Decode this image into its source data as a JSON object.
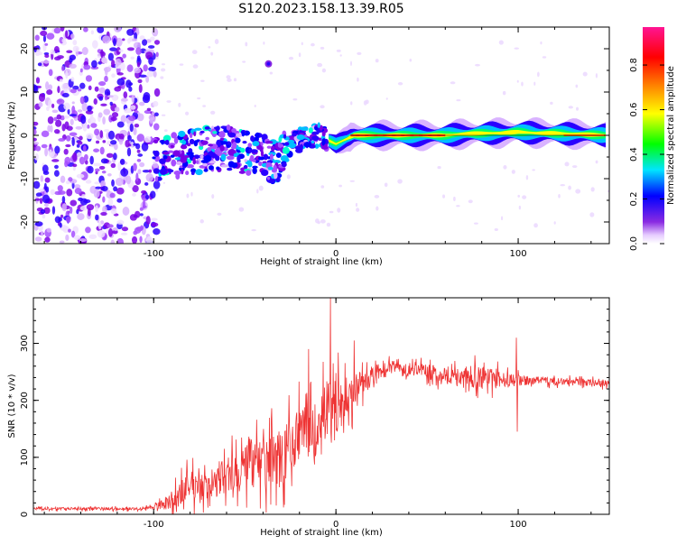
{
  "title": "S120.2023.158.13.39.R05",
  "chart_data": [
    {
      "type": "heatmap",
      "description_id": "spectrogram",
      "xlabel": "Height of straight line (km)",
      "ylabel": "Frequency (Hz)",
      "xlim": [
        -166,
        150
      ],
      "ylim": [
        -25,
        25
      ],
      "xticks": [
        -100,
        0,
        100
      ],
      "xtick_labels": [
        "-100",
        "0",
        "100"
      ],
      "yticks": [
        -20,
        -10,
        0,
        10,
        20
      ],
      "ytick_labels": [
        "-20",
        "-10",
        "0",
        "10",
        "20"
      ],
      "colorbar": {
        "label": "Normalized spectral amplitude",
        "range": [
          0,
          0.97
        ],
        "ticks": [
          0.0,
          0.2,
          0.4,
          0.6,
          0.8
        ],
        "tick_labels": [
          "0.0",
          "0.2",
          "0.4",
          "0.6",
          "0.8"
        ],
        "colors": [
          "#ffffff",
          "#8a2be2",
          "#0000ff",
          "#00e5ff",
          "#00ff00",
          "#ffff00",
          "#ff8c00",
          "#ff0000",
          "#ff1493"
        ]
      },
      "signal_track": {
        "x": [
          -100,
          -90,
          -80,
          -70,
          -60,
          -50,
          -40,
          -35,
          -30,
          -25,
          -20,
          -10,
          -5,
          0,
          5,
          10,
          50,
          60,
          70,
          80,
          90,
          100,
          110,
          120,
          130,
          150
        ],
        "freq": [
          -6,
          -5,
          -4,
          -3,
          -3,
          -4,
          -5,
          -6,
          -5,
          -2,
          -1,
          0,
          -1,
          -2,
          -1,
          0,
          0,
          0,
          0.3,
          0.5,
          0.5,
          0.8,
          0.5,
          0.5,
          0.3,
          0
        ]
      }
    },
    {
      "type": "line",
      "description_id": "snr",
      "xlabel": "Height of straight line (km)",
      "ylabel": "SNR (10 * v/v)",
      "xlim": [
        -166,
        150
      ],
      "ylim": [
        0,
        380
      ],
      "xticks": [
        -100,
        0,
        100
      ],
      "xtick_labels": [
        "-100",
        "0",
        "100"
      ],
      "yticks": [
        0,
        100,
        200,
        300
      ],
      "ytick_labels": [
        "0",
        "100",
        "200",
        "300"
      ],
      "color": "#ee3333",
      "envelope": {
        "x": [
          -166,
          -110,
          -100,
          -90,
          -80,
          -70,
          -60,
          -50,
          -40,
          -30,
          -20,
          -10,
          -5,
          0,
          10,
          20,
          30,
          40,
          60,
          80,
          90,
          100,
          110,
          130,
          150
        ],
        "mean": [
          10,
          10,
          12,
          25,
          50,
          50,
          70,
          80,
          90,
          100,
          140,
          150,
          175,
          190,
          215,
          245,
          260,
          255,
          245,
          240,
          235,
          235,
          235,
          232,
          230
        ],
        "spread": [
          3,
          3,
          5,
          20,
          35,
          30,
          45,
          50,
          55,
          60,
          60,
          60,
          70,
          60,
          40,
          20,
          12,
          12,
          20,
          25,
          20,
          12,
          8,
          8,
          8
        ]
      },
      "spikes": [
        {
          "x": -3,
          "y": 380
        },
        {
          "x": -15,
          "y": 290
        },
        {
          "x": 10,
          "y": 305
        },
        {
          "x": 99,
          "y": 310
        },
        {
          "x": 99.5,
          "y": 145
        }
      ]
    }
  ]
}
